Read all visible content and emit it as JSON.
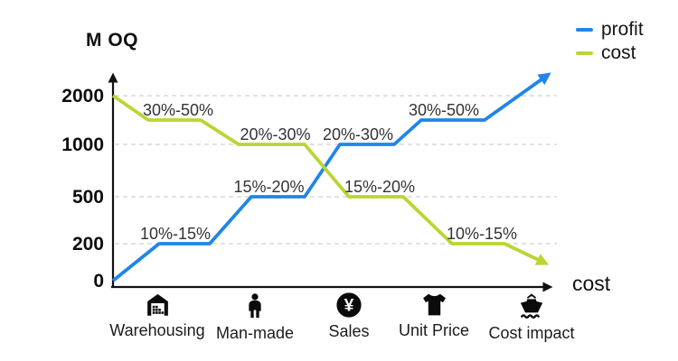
{
  "colors": {
    "axis": "#111111",
    "grid": "#c4c4c4",
    "annotation": "#333333",
    "tick": "#0d0d0d"
  },
  "chart_data": {
    "type": "line",
    "title": "",
    "ylabel": "M OQ",
    "xlabel": "cost",
    "yticks": [
      0,
      200,
      500,
      1000,
      2000
    ],
    "grid": true,
    "legend_position": "top-right",
    "categories": [
      {
        "label": "Warehousing",
        "icon": "warehouse-icon"
      },
      {
        "label": "Man-made",
        "icon": "person-icon"
      },
      {
        "label": "Sales",
        "icon": "yen-coin-icon"
      },
      {
        "label": "Unit Price",
        "icon": "tshirt-icon"
      },
      {
        "label": "Cost impact",
        "icon": "ship-icon"
      }
    ],
    "series": [
      {
        "name": "profit",
        "color": "#1f86e8",
        "trend": "rising-arrow",
        "start_value": 0,
        "end_value": 2400,
        "steps": [
          {
            "category": "Warehousing",
            "value": 200,
            "label": "10%-15%"
          },
          {
            "category": "Man-made",
            "value": 500,
            "label": "15%-20%"
          },
          {
            "category": "Sales",
            "value": 1000,
            "label": "20%-30%"
          },
          {
            "category": "Unit Price",
            "value": 1500,
            "label": "30%-50%"
          }
        ]
      },
      {
        "name": "cost",
        "color": "#bcd435",
        "trend": "falling-arrow",
        "start_value": 2000,
        "end_value": 100,
        "steps": [
          {
            "category": "Warehousing",
            "value": 1500,
            "label": "30%-50%"
          },
          {
            "category": "Man-made",
            "value": 1000,
            "label": "20%-30%"
          },
          {
            "category": "Sales",
            "value": 500,
            "label": "15%-20%"
          },
          {
            "category": "Unit Price",
            "value": 200,
            "label": "10%-15%"
          }
        ]
      }
    ],
    "legend": [
      {
        "label": "profit",
        "color": "#1f86e8"
      },
      {
        "label": "cost",
        "color": "#bcd435"
      }
    ]
  }
}
